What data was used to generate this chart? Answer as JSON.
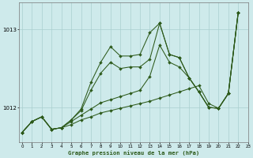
{
  "xlabel": "Graphe pression niveau de la mer (hPa)",
  "xlim": [
    0,
    23
  ],
  "ylim": [
    1011.55,
    1013.35
  ],
  "yticks": [
    1012,
    1013
  ],
  "xticks": [
    0,
    1,
    2,
    3,
    4,
    5,
    6,
    7,
    8,
    9,
    10,
    11,
    12,
    13,
    14,
    15,
    16,
    17,
    18,
    19,
    20,
    21,
    22,
    23
  ],
  "background_color": "#ceeaeb",
  "line_color": "#2d5a1b",
  "grid_color": "#aacfcf",
  "series": [
    [
      1011.68,
      1011.82,
      1011.88,
      1011.72,
      1011.74,
      1011.78,
      1011.84,
      1011.88,
      1011.93,
      1011.96,
      1011.99,
      1012.02,
      1012.05,
      1012.08,
      1012.12,
      1012.16,
      1012.2,
      1012.24,
      1012.28,
      1012.05,
      1011.99,
      1012.18,
      1013.22
    ],
    [
      1011.68,
      1011.82,
      1011.88,
      1011.72,
      1011.74,
      1011.82,
      1011.9,
      1011.98,
      1012.06,
      1012.1,
      1012.14,
      1012.18,
      1012.22,
      1012.4,
      1012.8,
      1012.58,
      1012.52,
      1012.38,
      1012.2,
      1012.0,
      1011.99,
      1012.18,
      1013.22
    ],
    [
      1011.68,
      1011.82,
      1011.88,
      1011.72,
      1011.74,
      1011.84,
      1011.96,
      1012.22,
      1012.44,
      1012.58,
      1012.5,
      1012.52,
      1012.52,
      1012.62,
      1013.08,
      1012.68,
      1012.64,
      1012.38,
      1012.2,
      1012.0,
      1011.99,
      1012.18,
      1013.22
    ],
    [
      1011.68,
      1011.82,
      1011.88,
      1011.72,
      1011.74,
      1011.84,
      1011.98,
      1012.32,
      1012.58,
      1012.78,
      1012.66,
      1012.66,
      1012.68,
      1012.96,
      1013.08,
      1012.68,
      1012.64,
      1012.38,
      1012.2,
      1012.0,
      1011.99,
      1012.18,
      1013.22
    ]
  ]
}
